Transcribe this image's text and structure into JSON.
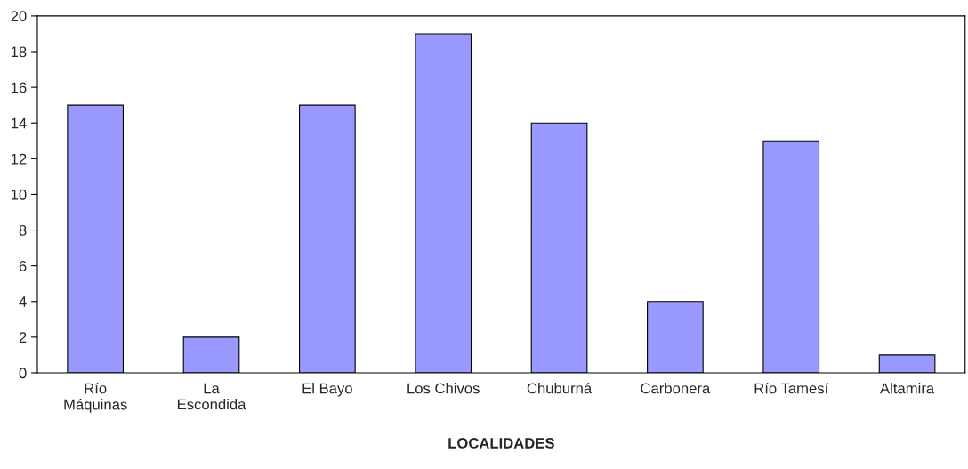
{
  "chart_data": {
    "type": "bar",
    "xlabel": "LOCALIDADES",
    "categories": [
      "Río\nMáquinas",
      "La\nEscondida",
      "El Bayo",
      "Los Chivos",
      "Chuburná",
      "Carbonera",
      "Río Tamesí",
      "Altamira"
    ],
    "values": [
      15,
      2,
      15,
      19,
      14,
      4,
      13,
      1
    ],
    "color": "#9999ff",
    "ylim": [
      0,
      20
    ],
    "yticks": [
      0,
      2,
      4,
      6,
      8,
      10,
      12,
      14,
      16,
      18,
      20
    ],
    "grid": false
  }
}
